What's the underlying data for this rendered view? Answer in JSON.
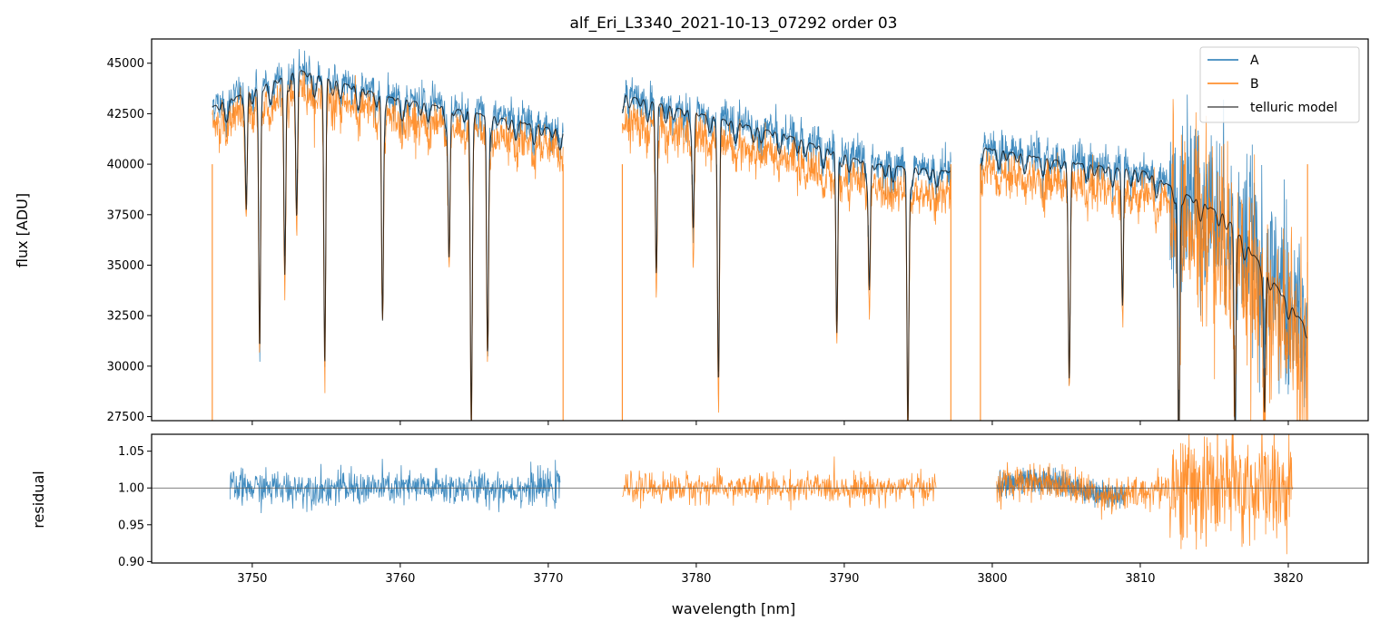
{
  "colors": {
    "A": "#1f77b4",
    "B": "#ff7f0e",
    "model": "#000000"
  },
  "chart_data": [
    {
      "type": "line",
      "title": "alf_Eri_L3340_2021-10-13_07292  order 03",
      "xlabel": "",
      "ylabel": "flux [ADU]",
      "xlim": [
        3743.2,
        3825.4
      ],
      "ylim": [
        27300,
        46200
      ],
      "yticks": [
        27500,
        30000,
        32500,
        35000,
        37500,
        40000,
        42500,
        45000
      ],
      "ytick_labels": [
        "27500",
        "30000",
        "32500",
        "35000",
        "37500",
        "40000",
        "42500",
        "45000"
      ],
      "xticks": [
        3750,
        3760,
        3770,
        3780,
        3790,
        3800,
        3810,
        3820
      ],
      "legend": {
        "position": "top-right",
        "entries": [
          "A",
          "B",
          "telluric model"
        ]
      },
      "segments": [
        {
          "x_start": 3747.3,
          "x_end": 3771.0,
          "A_level": [
            43000,
            44800,
            43500,
            42700,
            41800
          ],
          "B_offset": -1000
        },
        {
          "x_start": 3775.0,
          "x_end": 3797.2,
          "A_level": [
            43600,
            42600,
            41600,
            40200,
            39800
          ],
          "B_offset": -1200
        },
        {
          "x_start": 3799.2,
          "x_end": 3821.3,
          "A_level": [
            41000,
            40300,
            39800,
            37600,
            32000
          ],
          "B_offset": -1100
        }
      ],
      "absorption_lines": [
        3749.6,
        3750.5,
        3752.2,
        3753.0,
        3754.9,
        3758.8,
        3763.3,
        3764.8,
        3765.9,
        3777.3,
        3779.8,
        3781.5,
        3789.5,
        3791.7,
        3794.3,
        3805.2,
        3808.8,
        3812.6,
        3816.4,
        3818.4
      ]
    },
    {
      "type": "line",
      "title": "",
      "xlabel": "wavelength [nm]",
      "ylabel": "residual",
      "xlim": [
        3743.2,
        3825.4
      ],
      "ylim": [
        0.898,
        1.073
      ],
      "yticks": [
        0.9,
        0.95,
        1.0,
        1.05
      ],
      "ytick_labels": [
        "0.90",
        "0.95",
        "1.00",
        "1.05"
      ],
      "xticks": [
        3750,
        3760,
        3770,
        3780,
        3790,
        3800,
        3810,
        3820
      ],
      "xtick_labels": [
        "3750",
        "3760",
        "3770",
        "3780",
        "3790",
        "3800",
        "3810",
        "3820"
      ],
      "reference_line": 1.0,
      "series": [
        {
          "name": "A",
          "x_start": 3748.5,
          "x_end": 3770.8,
          "noise": 0.012
        },
        {
          "name": "B",
          "x_start": 3775.0,
          "x_end": 3796.2,
          "noise": 0.01
        },
        {
          "name": "A",
          "x_start": 3800.3,
          "x_end": 3809.0,
          "noise": 0.008
        },
        {
          "name": "B",
          "x_start": 3800.3,
          "x_end": 3820.3,
          "noise": 0.012
        }
      ]
    }
  ]
}
